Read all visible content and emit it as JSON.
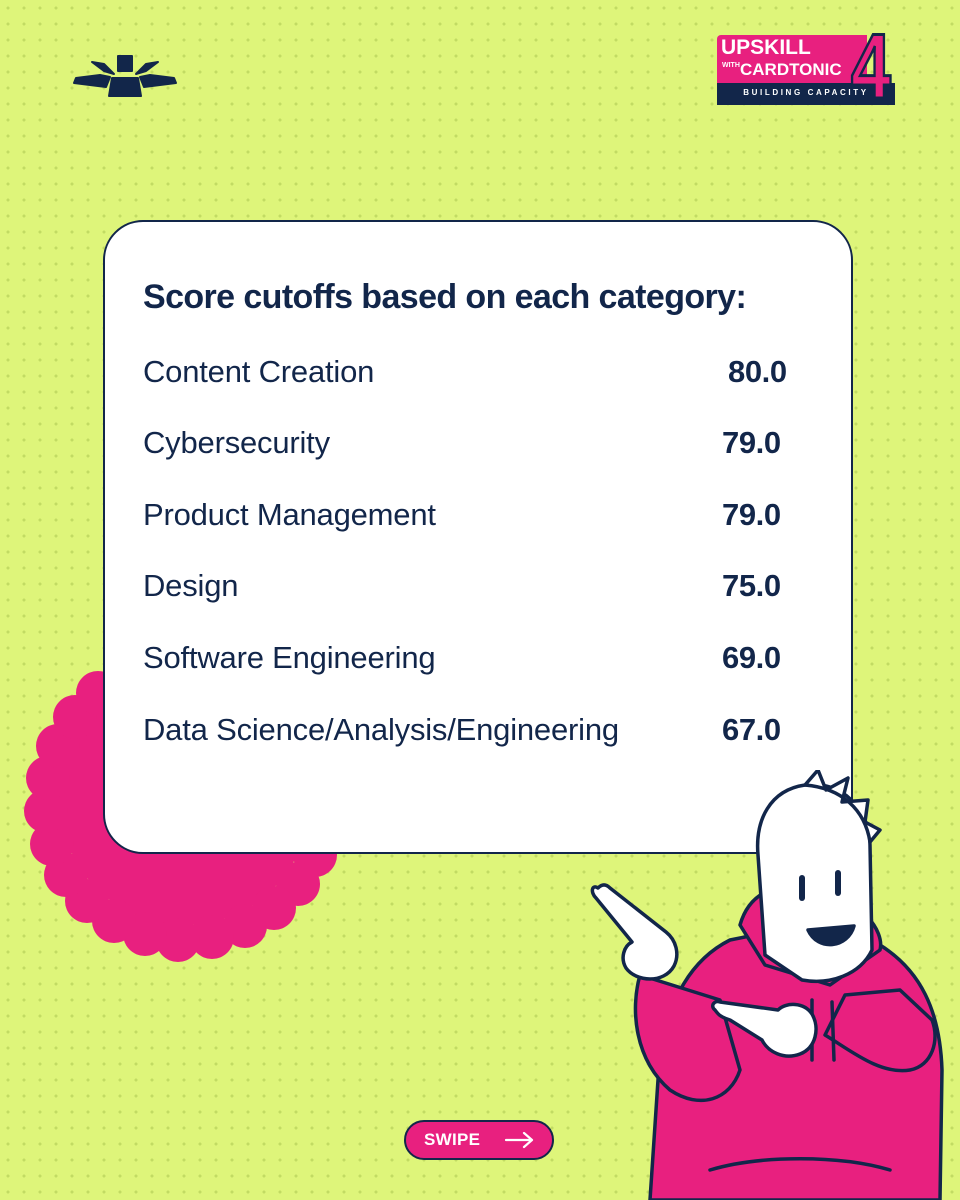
{
  "brand": {
    "logo_icon": "sun-rays-icon",
    "badge": {
      "line1": "UPSKILL",
      "with": "WITH",
      "line2": "CARDTONIC",
      "number": "4",
      "tagline": "BUILDING CAPACITY"
    }
  },
  "card": {
    "title": "Score cutoffs based on each category:",
    "rows": [
      {
        "label": "Content Creation",
        "value": "80.0"
      },
      {
        "label": "Cybersecurity",
        "value": "79.0"
      },
      {
        "label": "Product Management",
        "value": "79.0"
      },
      {
        "label": "Design",
        "value": "75.0"
      },
      {
        "label": "Software Engineering",
        "value": "69.0"
      },
      {
        "label": "Data Science/Analysis/Engineering",
        "value": "67.0"
      }
    ]
  },
  "swipe": {
    "label": "SWIPE",
    "icon": "arrow-right-icon"
  },
  "colors": {
    "background": "#def57a",
    "navy": "#12264a",
    "pink": "#e8207f",
    "card": "#ffffff"
  }
}
